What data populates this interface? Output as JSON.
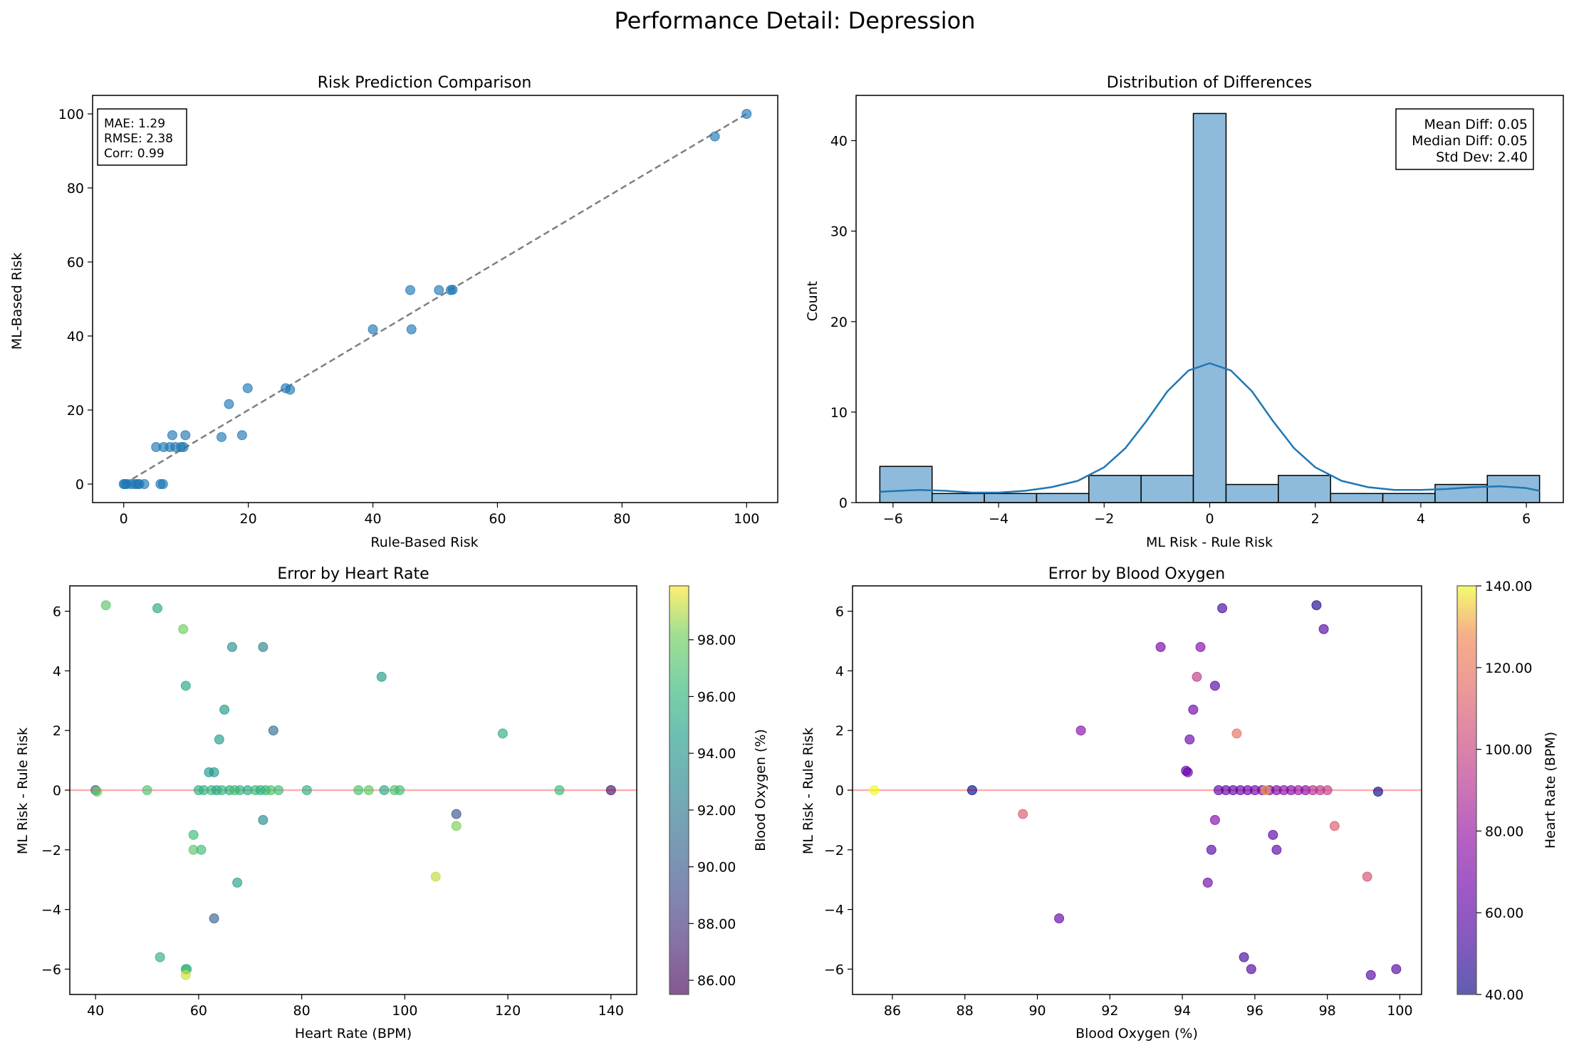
{
  "suptitle": "Performance Detail: Depression",
  "chart_data": [
    {
      "type": "scatter",
      "title": "Risk Prediction Comparison",
      "xlabel": "Rule-Based Risk",
      "ylabel": "ML-Based Risk",
      "xlim": [
        -5,
        105
      ],
      "ylim": [
        -5,
        105
      ],
      "xticks": [
        0,
        20,
        40,
        60,
        80,
        100
      ],
      "yticks": [
        0,
        20,
        40,
        60,
        80,
        100
      ],
      "point_color": "#1f77b4",
      "reference_line": {
        "from": [
          0,
          0
        ],
        "to": [
          100,
          100
        ],
        "style": "dashed",
        "color": "#7f7f7f"
      },
      "stats_box": [
        "MAE: 1.29",
        "RMSE: 2.38",
        "Corr: 0.99"
      ],
      "points": [
        [
          0,
          0
        ],
        [
          0.2,
          0
        ],
        [
          0.5,
          0
        ],
        [
          1.2,
          0
        ],
        [
          1.8,
          0
        ],
        [
          2.2,
          0
        ],
        [
          2.5,
          0
        ],
        [
          3.3,
          0
        ],
        [
          5.9,
          0
        ],
        [
          6.3,
          0
        ],
        [
          5.2,
          10
        ],
        [
          6.4,
          10
        ],
        [
          7.4,
          10
        ],
        [
          8.3,
          10
        ],
        [
          9.2,
          10
        ],
        [
          9.6,
          10
        ],
        [
          7.8,
          13.2
        ],
        [
          9.9,
          13.2
        ],
        [
          15.7,
          12.7
        ],
        [
          19.0,
          13.2
        ],
        [
          16.9,
          21.6
        ],
        [
          19.9,
          25.9
        ],
        [
          26.0,
          25.9
        ],
        [
          26.7,
          25.5
        ],
        [
          40.0,
          41.8
        ],
        [
          46.2,
          41.8
        ],
        [
          46.0,
          52.4
        ],
        [
          50.6,
          52.4
        ],
        [
          52.5,
          52.4
        ],
        [
          52.8,
          52.5
        ],
        [
          94.9,
          93.9
        ],
        [
          100,
          100
        ]
      ]
    },
    {
      "type": "bar",
      "title": "Distribution of Differences",
      "xlabel": "ML Risk - Rule Risk",
      "ylabel": "Count",
      "xlim": [
        -6.7,
        6.7
      ],
      "ylim": [
        0,
        45
      ],
      "xticks": [
        -6,
        -4,
        -2,
        0,
        2,
        4,
        6
      ],
      "yticks": [
        0,
        10,
        20,
        30,
        40
      ],
      "bar_color": "#8ebbdb",
      "kde_color": "#1f77b4",
      "bin_edges": [
        -6.25,
        -5.26,
        -4.27,
        -3.28,
        -2.29,
        -1.3,
        -0.31,
        0.31,
        1.3,
        2.29,
        3.28,
        4.27,
        5.26,
        6.25
      ],
      "counts": [
        4,
        1,
        1,
        1,
        3,
        3,
        43,
        2,
        3,
        1,
        1,
        2,
        3
      ],
      "kde": {
        "x": [
          -6.25,
          -5.5,
          -5.0,
          -4.5,
          -4.0,
          -3.5,
          -3.0,
          -2.5,
          -2.0,
          -1.6,
          -1.2,
          -0.8,
          -0.4,
          0.0,
          0.4,
          0.8,
          1.2,
          1.6,
          2.0,
          2.5,
          3.0,
          3.5,
          4.0,
          4.5,
          5.0,
          5.5,
          6.0,
          6.25
        ],
        "y": [
          1.2,
          1.4,
          1.3,
          1.1,
          1.1,
          1.3,
          1.7,
          2.4,
          3.9,
          6.0,
          9.0,
          12.3,
          14.6,
          15.4,
          14.6,
          12.3,
          9.0,
          6.0,
          3.9,
          2.4,
          1.7,
          1.4,
          1.4,
          1.5,
          1.7,
          1.8,
          1.6,
          1.3
        ]
      },
      "stats_box": [
        "Mean Diff: 0.05",
        "Median Diff: 0.05",
        "Std Dev: 2.40"
      ]
    },
    {
      "type": "scatter",
      "title": "Error by Heart Rate",
      "xlabel": "Heart Rate (BPM)",
      "ylabel": "ML Risk - Rule Risk",
      "xlim": [
        35,
        145
      ],
      "ylim": [
        -6.85,
        6.85
      ],
      "xticks": [
        40,
        60,
        80,
        100,
        120,
        140
      ],
      "yticks": [
        -6,
        -4,
        -2,
        0,
        2,
        4,
        6
      ],
      "reference_line": {
        "y": 0,
        "color": "#ff9999"
      },
      "colormap": "viridis",
      "colorbar": {
        "label": "Blood Oxygen (%)",
        "range": [
          85.5,
          99.9
        ],
        "ticks": [
          "86.00",
          "88.00",
          "90.00",
          "92.00",
          "94.00",
          "96.00",
          "98.00"
        ]
      },
      "points": [
        [
          42,
          6.2,
          97.4
        ],
        [
          52,
          6.1,
          95.1
        ],
        [
          57,
          5.4,
          97.9
        ],
        [
          57.5,
          3.5,
          94.9
        ],
        [
          66.5,
          4.8,
          93.4
        ],
        [
          72.5,
          4.8,
          92.8
        ],
        [
          95.5,
          3.8,
          94.2
        ],
        [
          65,
          2.7,
          94.2
        ],
        [
          74.5,
          2.0,
          91.2
        ],
        [
          64,
          1.7,
          94.1
        ],
        [
          119,
          1.9,
          95.5
        ],
        [
          62,
          0.6,
          94.1
        ],
        [
          63,
          0.6,
          94.1
        ],
        [
          40,
          0,
          89.9
        ],
        [
          40.3,
          -0.05,
          97.9
        ],
        [
          50,
          0,
          97.0
        ],
        [
          60,
          0,
          95.6
        ],
        [
          61,
          0,
          95.8
        ],
        [
          62.5,
          0,
          96.3
        ],
        [
          63.5,
          0,
          95.0
        ],
        [
          64.5,
          0,
          96.0
        ],
        [
          66,
          0,
          95.4
        ],
        [
          67,
          0,
          96.8
        ],
        [
          68,
          0,
          95.9
        ],
        [
          69.5,
          0,
          95.2
        ],
        [
          71,
          0,
          96.4
        ],
        [
          72,
          0,
          95.7
        ],
        [
          73,
          0,
          96.1
        ],
        [
          74,
          0,
          97.0
        ],
        [
          75.5,
          0,
          96.6
        ],
        [
          81,
          0,
          95.5
        ],
        [
          91,
          0,
          96.9
        ],
        [
          93,
          0,
          97.5
        ],
        [
          96,
          0,
          95.3
        ],
        [
          98,
          0,
          97.2
        ],
        [
          99,
          0,
          96.7
        ],
        [
          130,
          0,
          96.4
        ],
        [
          140,
          0,
          86.2
        ],
        [
          110,
          -0.8,
          89.6
        ],
        [
          110,
          -1.2,
          98.2
        ],
        [
          72.5,
          -1.0,
          93.1
        ],
        [
          59,
          -1.5,
          96.5
        ],
        [
          59,
          -2.0,
          97.4
        ],
        [
          60.5,
          -2.0,
          96.6
        ],
        [
          106,
          -2.9,
          99.1
        ],
        [
          67.5,
          -3.1,
          94.7
        ],
        [
          63,
          -4.3,
          90.6
        ],
        [
          52.5,
          -5.6,
          95.7
        ],
        [
          57.5,
          -6.0,
          95.9
        ],
        [
          57.7,
          -6.0,
          96.2
        ],
        [
          57.5,
          -6.2,
          99.3
        ]
      ]
    },
    {
      "type": "scatter",
      "title": "Error by Blood Oxygen",
      "xlabel": "Blood Oxygen (%)",
      "ylabel": "ML Risk - Rule Risk",
      "xlim": [
        84.9,
        100.6
      ],
      "ylim": [
        -6.85,
        6.85
      ],
      "xticks": [
        86,
        88,
        90,
        92,
        94,
        96,
        98,
        100
      ],
      "yticks": [
        -6,
        -4,
        -2,
        0,
        2,
        4,
        6
      ],
      "reference_line": {
        "y": 0,
        "color": "#ff9999"
      },
      "colormap": "plasma",
      "colorbar": {
        "label": "Heart Rate (BPM)",
        "range": [
          40,
          140
        ],
        "ticks": [
          "40.00",
          "60.00",
          "80.00",
          "100.00",
          "120.00",
          "140.00"
        ]
      },
      "points": [
        [
          97.7,
          6.2,
          42
        ],
        [
          95.1,
          6.1,
          52
        ],
        [
          97.9,
          5.4,
          57
        ],
        [
          93.4,
          4.8,
          67
        ],
        [
          94.5,
          4.8,
          72
        ],
        [
          94.4,
          3.8,
          96
        ],
        [
          94.9,
          3.5,
          57.5
        ],
        [
          94.3,
          2.7,
          65
        ],
        [
          91.2,
          2.0,
          74.5
        ],
        [
          94.2,
          1.7,
          64
        ],
        [
          95.5,
          1.9,
          119
        ],
        [
          94.1,
          0.65,
          62
        ],
        [
          94.15,
          0.6,
          63
        ],
        [
          85.5,
          0,
          140
        ],
        [
          88.2,
          0,
          40
        ],
        [
          95.0,
          0,
          60
        ],
        [
          95.2,
          0,
          62
        ],
        [
          95.4,
          0,
          61
        ],
        [
          95.6,
          0,
          65
        ],
        [
          95.8,
          0,
          64
        ],
        [
          96.0,
          0,
          67
        ],
        [
          96.2,
          0,
          69
        ],
        [
          96.4,
          0,
          72
        ],
        [
          96.6,
          0,
          70
        ],
        [
          96.8,
          0,
          75
        ],
        [
          97.0,
          0,
          73
        ],
        [
          97.2,
          0,
          80
        ],
        [
          97.4,
          0,
          74
        ],
        [
          97.6,
          0,
          91
        ],
        [
          97.8,
          0,
          93
        ],
        [
          98.0,
          0,
          98
        ],
        [
          96.3,
          0,
          130
        ],
        [
          99.4,
          -0.05,
          40
        ],
        [
          89.6,
          -0.8,
          110
        ],
        [
          98.2,
          -1.2,
          110
        ],
        [
          94.9,
          -1.0,
          72.5
        ],
        [
          96.5,
          -1.5,
          59
        ],
        [
          94.8,
          -2.0,
          59
        ],
        [
          96.6,
          -2.0,
          60.5
        ],
        [
          99.1,
          -2.9,
          106
        ],
        [
          94.7,
          -3.1,
          67.5
        ],
        [
          90.6,
          -4.3,
          63
        ],
        [
          95.7,
          -5.6,
          52.5
        ],
        [
          95.9,
          -6.0,
          57.5
        ],
        [
          99.9,
          -6.0,
          57.7
        ],
        [
          99.2,
          -6.2,
          57.5
        ]
      ]
    }
  ]
}
